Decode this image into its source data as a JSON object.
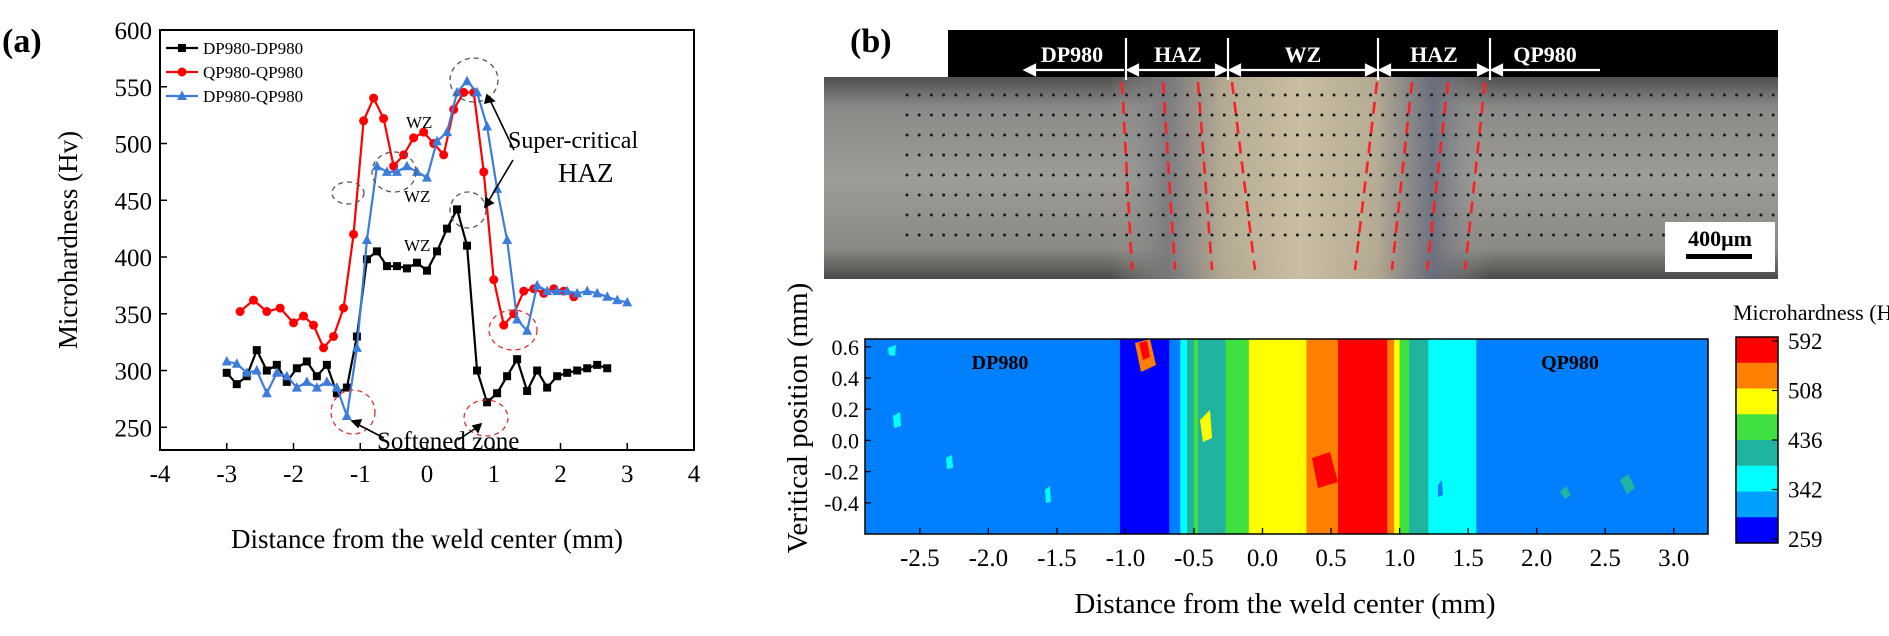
{
  "panel_a": {
    "label": "(a)",
    "chart_data": {
      "type": "line",
      "xlabel": "Distance from the weld center (mm)",
      "ylabel": "Microhardness (Hv)",
      "xlim": [
        -4,
        4
      ],
      "ylim": [
        230,
        600
      ],
      "xticks": [
        "-4",
        "-3",
        "-2",
        "-1",
        "0",
        "1",
        "2",
        "3",
        "4"
      ],
      "yticks": [
        "250",
        "300",
        "350",
        "400",
        "450",
        "500",
        "550",
        "600"
      ],
      "legend_position": "top-left",
      "series": [
        {
          "name": "DP980-DP980",
          "color": "#000000",
          "marker": "square",
          "x": [
            -3.0,
            -2.85,
            -2.7,
            -2.55,
            -2.4,
            -2.25,
            -2.1,
            -1.95,
            -1.8,
            -1.65,
            -1.5,
            -1.35,
            -1.2,
            -1.05,
            -0.9,
            -0.75,
            -0.6,
            -0.45,
            -0.3,
            -0.15,
            0.0,
            0.15,
            0.3,
            0.45,
            0.6,
            0.75,
            0.9,
            1.05,
            1.2,
            1.35,
            1.5,
            1.65,
            1.8,
            1.95,
            2.1,
            2.25,
            2.4,
            2.55,
            2.7
          ],
          "values": [
            298,
            288,
            295,
            318,
            300,
            305,
            290,
            302,
            308,
            295,
            305,
            280,
            285,
            330,
            398,
            405,
            392,
            392,
            390,
            395,
            388,
            405,
            425,
            442,
            410,
            300,
            272,
            280,
            295,
            310,
            282,
            300,
            285,
            295,
            298,
            300,
            302,
            305,
            302
          ]
        },
        {
          "name": "QP980-QP980",
          "color": "#ff0000",
          "marker": "circle",
          "x": [
            -2.8,
            -2.6,
            -2.4,
            -2.2,
            -2.0,
            -1.85,
            -1.7,
            -1.55,
            -1.4,
            -1.25,
            -1.1,
            -0.95,
            -0.8,
            -0.65,
            -0.5,
            -0.35,
            -0.2,
            -0.05,
            0.1,
            0.25,
            0.4,
            0.55,
            0.7,
            0.85,
            1.0,
            1.15,
            1.3,
            1.45,
            1.6,
            1.75,
            1.9,
            2.05,
            2.2
          ],
          "values": [
            352,
            362,
            352,
            355,
            342,
            348,
            340,
            320,
            330,
            355,
            420,
            520,
            540,
            522,
            480,
            490,
            505,
            510,
            500,
            490,
            530,
            545,
            545,
            475,
            380,
            340,
            350,
            370,
            372,
            368,
            372,
            370,
            365
          ]
        },
        {
          "name": "DP980-QP980",
          "color": "#3c7ddc",
          "marker": "triangle",
          "x": [
            -3.0,
            -2.85,
            -2.7,
            -2.55,
            -2.4,
            -2.25,
            -2.1,
            -1.95,
            -1.8,
            -1.65,
            -1.5,
            -1.35,
            -1.2,
            -1.05,
            -0.9,
            -0.75,
            -0.6,
            -0.45,
            -0.3,
            -0.15,
            0.0,
            0.15,
            0.3,
            0.45,
            0.6,
            0.75,
            0.9,
            1.05,
            1.2,
            1.35,
            1.5,
            1.65,
            1.8,
            1.95,
            2.1,
            2.25,
            2.4,
            2.55,
            2.7,
            2.85,
            3.0
          ],
          "values": [
            308,
            306,
            298,
            300,
            280,
            298,
            295,
            285,
            290,
            285,
            290,
            285,
            260,
            320,
            415,
            480,
            475,
            475,
            480,
            475,
            470,
            502,
            510,
            545,
            555,
            545,
            515,
            460,
            415,
            345,
            335,
            375,
            370,
            370,
            370,
            368,
            370,
            368,
            365,
            362,
            360
          ]
        }
      ],
      "annotations": [
        "WZ",
        "WZ",
        "WZ",
        "Super-critical",
        "HAZ",
        "Softened zone"
      ]
    }
  },
  "panel_b": {
    "label": "(b)",
    "micrograph": {
      "zones": [
        "DP980",
        "HAZ",
        "WZ",
        "HAZ",
        "QP980"
      ],
      "scale_bar": "400μm"
    },
    "chart_data": {
      "type": "heatmap",
      "xlabel": "Distance from the weld center (mm)",
      "ylabel": "Veritical position (mm)",
      "xlim": [
        -2.9,
        3.25
      ],
      "ylim": [
        -0.6,
        0.65
      ],
      "xticks": [
        "-2.5",
        "-2.0",
        "-1.5",
        "-1.0",
        "-0.5",
        "0.0",
        "0.5",
        "1.0",
        "1.5",
        "2.0",
        "2.5",
        "3.0"
      ],
      "yticks": [
        "0.6",
        "0.4",
        "0.2",
        "0.0",
        "-0.2",
        "-0.4"
      ],
      "left_label": "DP980",
      "right_label": "QP980",
      "colorbar_title": "Microhardness (Hv)",
      "colorbar_ticks": [
        "592",
        "508",
        "436",
        "342",
        "259"
      ],
      "colorbar_colors": [
        "#ff0000",
        "#ff8000",
        "#ffff00",
        "#40e040",
        "#20b4a0",
        "#00ffff",
        "#00a0ff",
        "#0000ff"
      ],
      "x_profile": [
        -2.9,
        -1.2,
        -1.0,
        -0.85,
        -0.7,
        -0.6,
        -0.5,
        -0.35,
        -0.2,
        -0.1,
        0.0,
        0.2,
        0.4,
        0.6,
        0.75,
        0.9,
        1.0,
        1.1,
        1.25,
        1.4,
        1.6,
        3.25
      ],
      "hardness_profile": [
        335,
        335,
        290,
        265,
        290,
        340,
        440,
        420,
        450,
        470,
        480,
        490,
        520,
        560,
        590,
        560,
        470,
        420,
        380,
        350,
        340,
        340
      ]
    }
  }
}
